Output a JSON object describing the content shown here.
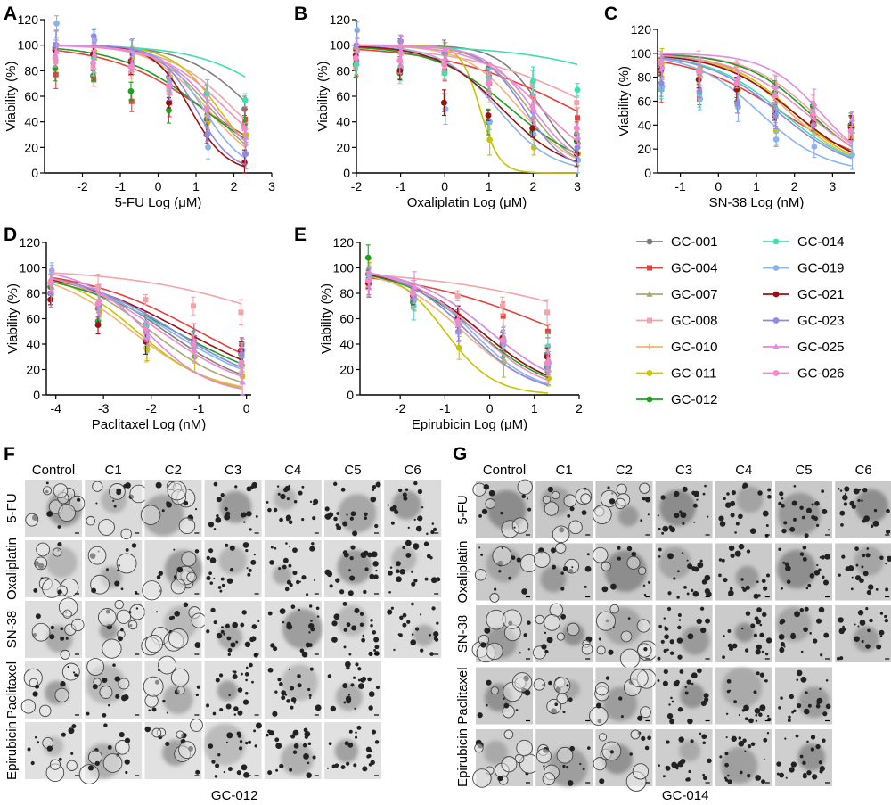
{
  "panel_letters": {
    "A": "A",
    "B": "B",
    "C": "C",
    "D": "D",
    "E": "E",
    "F": "F",
    "G": "G"
  },
  "legend": [
    {
      "name": "GC-001",
      "color": "#7f7f7f",
      "marker": "circle"
    },
    {
      "name": "GC-004",
      "color": "#e8413c",
      "marker": "square"
    },
    {
      "name": "GC-007",
      "color": "#a8a878",
      "marker": "triangle"
    },
    {
      "name": "GC-008",
      "color": "#f4a3a8",
      "marker": "square"
    },
    {
      "name": "GC-010",
      "color": "#f5b27a",
      "marker": "plus"
    },
    {
      "name": "GC-011",
      "color": "#c8c400",
      "marker": "circle"
    },
    {
      "name": "GC-012",
      "color": "#1fa024",
      "marker": "circle"
    },
    {
      "name": "GC-014",
      "color": "#3fe0b0",
      "marker": "circle"
    },
    {
      "name": "GC-019",
      "color": "#8ab4f0",
      "marker": "circle"
    },
    {
      "name": "GC-021",
      "color": "#9b1010",
      "marker": "circle"
    },
    {
      "name": "GC-023",
      "color": "#8e8ae8",
      "marker": "circle"
    },
    {
      "name": "GC-025",
      "color": "#e08ae0",
      "marker": "triangle"
    },
    {
      "name": "GC-026",
      "color": "#f28ac8",
      "marker": "circle"
    }
  ],
  "chart_data": [
    {
      "id": "A",
      "type": "line",
      "xlabel": "5-FU  Log (μM)",
      "ylabel": "Viability (%)",
      "xlim": [
        -3,
        3
      ],
      "xticks": [
        -2,
        -1,
        0,
        1,
        2,
        3
      ],
      "ylim": [
        0,
        120
      ],
      "yticks": [
        0,
        20,
        40,
        60,
        80,
        100,
        120
      ],
      "x": [
        -2.7,
        -1.7,
        -0.7,
        0.3,
        1.3,
        2.3
      ],
      "series": [
        {
          "name": "GC-001",
          "logIC50": 2.5,
          "hill": 0.5,
          "values": [
            98,
            93,
            88,
            75,
            62,
            50
          ]
        },
        {
          "name": "GC-004",
          "logIC50": 1.2,
          "hill": 0.35,
          "values": [
            77,
            73,
            56,
            55,
            45,
            42
          ]
        },
        {
          "name": "GC-007",
          "logIC50": 1.4,
          "hill": 0.6,
          "values": [
            97,
            90,
            83,
            70,
            45,
            30
          ]
        },
        {
          "name": "GC-008",
          "logIC50": 2.0,
          "hill": 0.5,
          "values": [
            87,
            82,
            78,
            65,
            50,
            35
          ]
        },
        {
          "name": "GC-010",
          "logIC50": 1.3,
          "hill": 0.6,
          "values": [
            95,
            90,
            82,
            62,
            45,
            28
          ]
        },
        {
          "name": "GC-011",
          "logIC50": 1.6,
          "hill": 0.7,
          "values": [
            100,
            95,
            90,
            75,
            40,
            30
          ]
        },
        {
          "name": "GC-012",
          "logIC50": 1.2,
          "hill": 0.4,
          "values": [
            82,
            76,
            64,
            49,
            42,
            38
          ]
        },
        {
          "name": "GC-014",
          "logIC50": 3.5,
          "hill": 0.4,
          "values": [
            96,
            90,
            85,
            72,
            62,
            57
          ]
        },
        {
          "name": "GC-019",
          "logIC50": 1.2,
          "hill": 0.8,
          "values": [
            117,
            104,
            93,
            73,
            20,
            15
          ]
        },
        {
          "name": "GC-021",
          "logIC50": 0.85,
          "hill": 0.9,
          "values": [
            96,
            93,
            87,
            55,
            30,
            8
          ]
        },
        {
          "name": "GC-023",
          "logIC50": 1.0,
          "hill": 0.9,
          "values": [
            100,
            107,
            96,
            68,
            30,
            15
          ]
        },
        {
          "name": "GC-025",
          "logIC50": 1.5,
          "hill": 0.6,
          "values": [
            95,
            93,
            85,
            70,
            45,
            28
          ]
        },
        {
          "name": "GC-026",
          "logIC50": 1.8,
          "hill": 0.5,
          "values": [
            90,
            86,
            83,
            68,
            50,
            35
          ]
        }
      ]
    },
    {
      "id": "B",
      "type": "line",
      "xlabel": "Oxaliplatin  Log (μM)",
      "ylabel": "Viability (%)",
      "xlim": [
        -2,
        3
      ],
      "xticks": [
        -2,
        -1,
        0,
        1,
        2,
        3
      ],
      "ylim": [
        0,
        120
      ],
      "yticks": [
        0,
        20,
        40,
        60,
        80,
        100,
        120
      ],
      "x": [
        -2,
        -1,
        0,
        1,
        2,
        3
      ],
      "series": [
        {
          "name": "GC-001",
          "logIC50": 2.2,
          "hill": 0.9,
          "values": [
            97,
            98,
            94,
            82,
            60,
            30
          ]
        },
        {
          "name": "GC-004",
          "logIC50": 2.9,
          "hill": 0.3,
          "values": [
            87,
            82,
            80,
            75,
            60,
            43
          ]
        },
        {
          "name": "GC-007",
          "logIC50": 1.9,
          "hill": 0.8,
          "values": [
            97,
            95,
            90,
            70,
            45,
            25
          ]
        },
        {
          "name": "GC-008",
          "logIC50": 3.5,
          "hill": 0.3,
          "values": [
            82,
            80,
            78,
            72,
            70,
            55
          ]
        },
        {
          "name": "GC-010",
          "logIC50": 1.7,
          "hill": 0.7,
          "values": [
            95,
            93,
            85,
            60,
            40,
            20
          ]
        },
        {
          "name": "GC-011",
          "logIC50": 0.8,
          "hill": 2.0,
          "values": [
            98,
            98,
            93,
            26,
            20,
            15
          ]
        },
        {
          "name": "GC-012",
          "logIC50": 1.5,
          "hill": 0.5,
          "values": [
            85,
            78,
            55,
            40,
            32,
            25
          ]
        },
        {
          "name": "GC-014",
          "logIC50": 5.5,
          "hill": 0.3,
          "values": [
            85,
            83,
            78,
            74,
            72,
            65
          ]
        },
        {
          "name": "GC-019",
          "logIC50": 1.2,
          "hill": 0.7,
          "values": [
            112,
            95,
            50,
            40,
            30,
            10
          ]
        },
        {
          "name": "GC-021",
          "logIC50": 1.3,
          "hill": 0.6,
          "values": [
            92,
            80,
            55,
            45,
            35,
            15
          ]
        },
        {
          "name": "GC-023",
          "logIC50": 1.8,
          "hill": 0.9,
          "values": [
            100,
            103,
            94,
            70,
            48,
            20
          ]
        },
        {
          "name": "GC-025",
          "logIC50": 2.0,
          "hill": 0.8,
          "values": [
            96,
            95,
            90,
            72,
            50,
            28
          ]
        },
        {
          "name": "GC-026",
          "logIC50": 2.2,
          "hill": 0.6,
          "values": [
            90,
            88,
            85,
            70,
            52,
            35
          ]
        }
      ]
    },
    {
      "id": "C",
      "type": "line",
      "xlabel": "SN-38  Log (nM)",
      "ylabel": "Viability (%)",
      "xlim": [
        -1.6,
        3.6
      ],
      "xticks": [
        -1,
        0,
        1,
        2,
        3
      ],
      "ylim": [
        0,
        120
      ],
      "yticks": [
        0,
        20,
        40,
        60,
        80,
        100,
        120
      ],
      "x": [
        -1.5,
        -0.5,
        0.5,
        1.5,
        2.5,
        3.5
      ],
      "series": [
        {
          "name": "GC-001",
          "logIC50": 2.0,
          "hill": 0.45,
          "values": [
            85,
            78,
            70,
            55,
            48,
            40
          ]
        },
        {
          "name": "GC-004",
          "logIC50": 1.7,
          "hill": 0.35,
          "values": [
            70,
            62,
            58,
            50,
            45,
            38
          ]
        },
        {
          "name": "GC-007",
          "logIC50": 1.9,
          "hill": 0.5,
          "values": [
            90,
            82,
            72,
            55,
            45,
            35
          ]
        },
        {
          "name": "GC-008",
          "logIC50": 2.5,
          "hill": 0.5,
          "values": [
            95,
            92,
            90,
            75,
            55,
            30
          ]
        },
        {
          "name": "GC-010",
          "logIC50": 1.9,
          "hill": 0.5,
          "values": [
            88,
            80,
            68,
            52,
            40,
            30
          ]
        },
        {
          "name": "GC-011",
          "logIC50": 2.0,
          "hill": 0.5,
          "values": [
            92,
            88,
            70,
            35,
            40,
            38
          ]
        },
        {
          "name": "GC-012",
          "logIC50": 2.4,
          "hill": 0.5,
          "values": [
            86,
            78,
            70,
            67,
            56,
            40
          ]
        },
        {
          "name": "GC-014",
          "logIC50": 1.7,
          "hill": 0.45,
          "values": [
            70,
            66,
            60,
            50,
            42,
            36
          ]
        },
        {
          "name": "GC-019",
          "logIC50": 1.1,
          "hill": 0.5,
          "values": [
            72,
            62,
            55,
            28,
            22,
            15
          ]
        },
        {
          "name": "GC-021",
          "logIC50": 2.0,
          "hill": 0.45,
          "values": [
            86,
            78,
            70,
            48,
            42,
            38
          ]
        },
        {
          "name": "GC-023",
          "logIC50": 1.6,
          "hill": 0.45,
          "values": [
            75,
            68,
            58,
            48,
            40,
            35
          ]
        },
        {
          "name": "GC-025",
          "logIC50": 2.7,
          "hill": 0.6,
          "values": [
            88,
            85,
            80,
            72,
            58,
            45
          ]
        },
        {
          "name": "GC-026",
          "logIC50": 2.3,
          "hill": 0.45,
          "values": [
            92,
            85,
            75,
            65,
            50,
            35
          ]
        }
      ]
    },
    {
      "id": "D",
      "type": "line",
      "xlabel": "Paclitaxel  Log (nM)",
      "ylabel": "Viability (%)",
      "xlim": [
        -4.2,
        0.1
      ],
      "xticks": [
        -4,
        -3,
        -2,
        -1,
        0
      ],
      "ylim": [
        0,
        120
      ],
      "yticks": [
        0,
        20,
        40,
        60,
        80,
        100,
        120
      ],
      "x": [
        -4.1,
        -3.1,
        -2.1,
        -1.1,
        -0.1
      ],
      "series": [
        {
          "name": "GC-001",
          "logIC50": -1.7,
          "hill": 0.45,
          "values": [
            80,
            68,
            55,
            40,
            32
          ]
        },
        {
          "name": "GC-004",
          "logIC50": -1.0,
          "hill": 0.35,
          "values": [
            80,
            70,
            55,
            45,
            40
          ]
        },
        {
          "name": "GC-007",
          "logIC50": -2.0,
          "hill": 0.5,
          "values": [
            85,
            68,
            40,
            35,
            25
          ]
        },
        {
          "name": "GC-008",
          "logIC50": 1.5,
          "hill": 0.25,
          "values": [
            88,
            85,
            75,
            70,
            65
          ]
        },
        {
          "name": "GC-010",
          "logIC50": -2.4,
          "hill": 0.5,
          "values": [
            90,
            70,
            37,
            30,
            18
          ]
        },
        {
          "name": "GC-011",
          "logIC50": -2.3,
          "hill": 0.55,
          "values": [
            90,
            65,
            36,
            30,
            15
          ]
        },
        {
          "name": "GC-012",
          "logIC50": -1.5,
          "hill": 0.35,
          "values": [
            85,
            58,
            55,
            40,
            35
          ]
        },
        {
          "name": "GC-014",
          "logIC50": -1.5,
          "hill": 0.4,
          "values": [
            88,
            70,
            55,
            38,
            30
          ]
        },
        {
          "name": "GC-019",
          "logIC50": -1.6,
          "hill": 0.4,
          "values": [
            98,
            70,
            45,
            38,
            35
          ]
        },
        {
          "name": "GC-021",
          "logIC50": -1.3,
          "hill": 0.35,
          "values": [
            75,
            55,
            42,
            40,
            35
          ]
        },
        {
          "name": "GC-023",
          "logIC50": -1.5,
          "hill": 0.4,
          "values": [
            80,
            70,
            50,
            40,
            32
          ]
        },
        {
          "name": "GC-025",
          "logIC50": -2.1,
          "hill": 0.65,
          "values": [
            90,
            75,
            45,
            35,
            10
          ]
        },
        {
          "name": "GC-026",
          "logIC50": -1.8,
          "hill": 0.45,
          "values": [
            88,
            72,
            52,
            40,
            25
          ]
        }
      ]
    },
    {
      "id": "E",
      "type": "line",
      "xlabel": "Epirubicin  Log (μM)",
      "ylabel": "Viability (%)",
      "xlim": [
        -2.9,
        2
      ],
      "xticks": [
        -2,
        -1,
        0,
        1,
        2
      ],
      "ylim": [
        0,
        120
      ],
      "yticks": [
        0,
        20,
        40,
        60,
        80,
        100,
        120
      ],
      "x": [
        -2.7,
        -1.7,
        -0.7,
        0.3,
        1.3
      ],
      "series": [
        {
          "name": "GC-001",
          "logIC50": -0.2,
          "hill": 0.5,
          "values": [
            95,
            75,
            60,
            45,
            32
          ]
        },
        {
          "name": "GC-004",
          "logIC50": 1.6,
          "hill": 0.25,
          "values": [
            88,
            75,
            62,
            62,
            50
          ]
        },
        {
          "name": "GC-007",
          "logIC50": -0.5,
          "hill": 0.6,
          "values": [
            95,
            78,
            55,
            35,
            20
          ]
        },
        {
          "name": "GC-008",
          "logIC50": 3.5,
          "hill": 0.2,
          "values": [
            85,
            82,
            78,
            70,
            65
          ]
        },
        {
          "name": "GC-010",
          "logIC50": -0.6,
          "hill": 0.55,
          "values": [
            92,
            75,
            48,
            35,
            18
          ]
        },
        {
          "name": "GC-011",
          "logIC50": -1.0,
          "hill": 0.8,
          "values": [
            95,
            75,
            37,
            26,
            13
          ]
        },
        {
          "name": "GC-012",
          "logIC50": -0.3,
          "hill": 0.5,
          "values": [
            108,
            73,
            60,
            40,
            22
          ]
        },
        {
          "name": "GC-014",
          "logIC50": 0.0,
          "hill": 0.5,
          "values": [
            92,
            70,
            58,
            45,
            38
          ]
        },
        {
          "name": "GC-019",
          "logIC50": -0.4,
          "hill": 0.6,
          "values": [
            95,
            76,
            55,
            42,
            25
          ]
        },
        {
          "name": "GC-021",
          "logIC50": -0.2,
          "hill": 0.5,
          "values": [
            88,
            78,
            60,
            45,
            30
          ]
        },
        {
          "name": "GC-023",
          "logIC50": -0.5,
          "hill": 0.6,
          "values": [
            90,
            78,
            50,
            40,
            22
          ]
        },
        {
          "name": "GC-025",
          "logIC50": 0.0,
          "hill": 0.5,
          "values": [
            92,
            85,
            55,
            45,
            28
          ]
        },
        {
          "name": "GC-026",
          "logIC50": -0.3,
          "hill": 0.55,
          "values": [
            90,
            80,
            58,
            43,
            25
          ]
        }
      ]
    }
  ],
  "organoids": {
    "F": {
      "label": "GC-012",
      "columns": [
        "Control",
        "C1",
        "C2",
        "C3",
        "C4",
        "C5",
        "C6"
      ],
      "rows": [
        {
          "drug": "5-FU",
          "n": 7
        },
        {
          "drug": "Oxaliplatin",
          "n": 7
        },
        {
          "drug": "SN-38",
          "n": 7
        },
        {
          "drug": "Paclitaxel",
          "n": 6
        },
        {
          "drug": "Epirubicin",
          "n": 6
        }
      ]
    },
    "G": {
      "label": "GC-014",
      "columns": [
        "Control",
        "C1",
        "C2",
        "C3",
        "C4",
        "C5",
        "C6"
      ],
      "rows": [
        {
          "drug": "5-FU",
          "n": 7
        },
        {
          "drug": "Oxaliplatin",
          "n": 7
        },
        {
          "drug": "SN-38",
          "n": 7
        },
        {
          "drug": "Paclitaxel",
          "n": 6
        },
        {
          "drug": "Epirubicin",
          "n": 6
        }
      ]
    }
  }
}
